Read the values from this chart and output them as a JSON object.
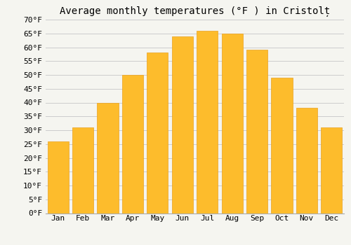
{
  "title": "Average monthly temperatures (°F ) in Cristolț",
  "months": [
    "Jan",
    "Feb",
    "Mar",
    "Apr",
    "May",
    "Jun",
    "Jul",
    "Aug",
    "Sep",
    "Oct",
    "Nov",
    "Dec"
  ],
  "values": [
    26,
    31,
    40,
    50,
    58,
    64,
    66,
    65,
    59,
    49,
    38,
    31
  ],
  "bar_color": "#FDBC2C",
  "bar_edge_color": "#E8A020",
  "background_color": "#F5F5F0",
  "ylim": [
    0,
    70
  ],
  "ytick_step": 5,
  "title_fontsize": 10,
  "tick_fontsize": 8,
  "grid_color": "#CCCCCC",
  "bar_width": 0.85
}
